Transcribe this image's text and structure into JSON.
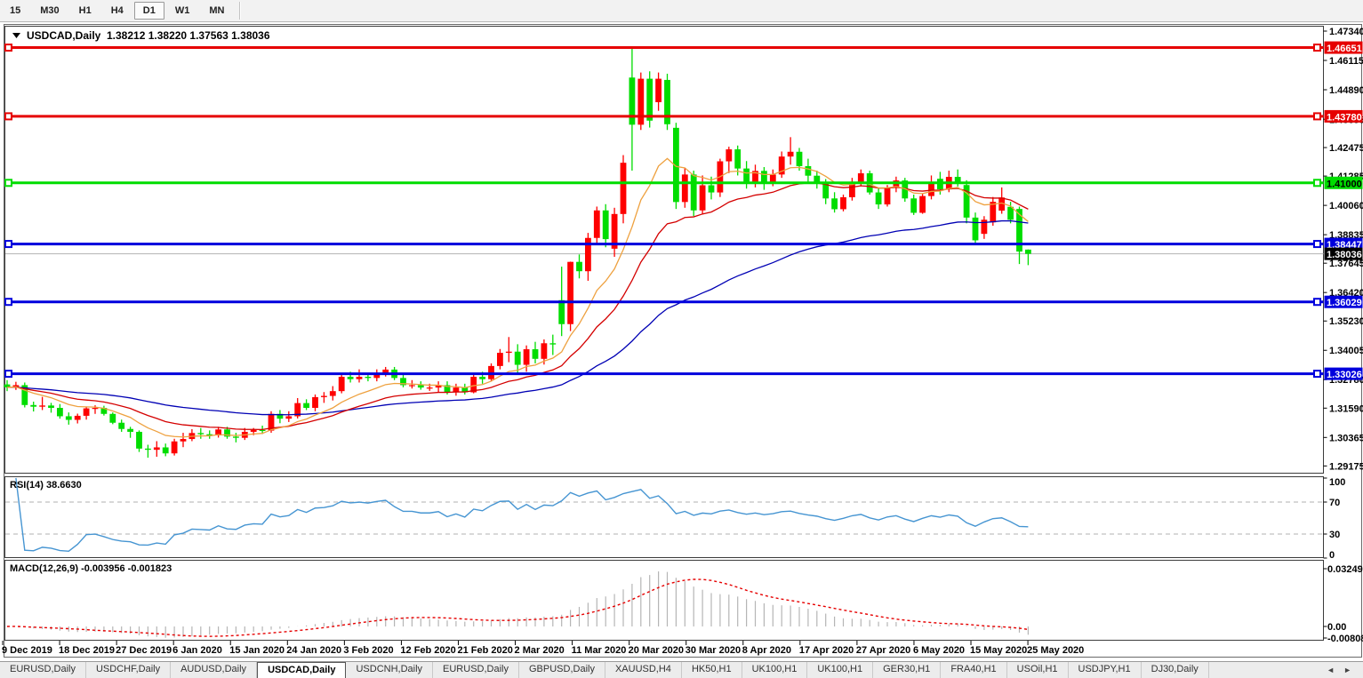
{
  "toolbar": {
    "timeframes": [
      "15",
      "M30",
      "H1",
      "H4",
      "D1",
      "W1",
      "MN"
    ],
    "active": "D1"
  },
  "chart": {
    "symbol_label": "USDCAD,Daily",
    "ohlc_text": "1.38212 1.38220 1.37563 1.38036",
    "price_axis_ticks": [
      "1.47340",
      "1.46115",
      "1.44890",
      "1.43655",
      "1.42475",
      "1.41285",
      "1.40060",
      "1.38835",
      "1.37645",
      "1.36420",
      "1.35230",
      "1.34005",
      "1.32780",
      "1.31590",
      "1.30365",
      "1.29175"
    ],
    "hlines": [
      {
        "value": 1.46651,
        "label": "1.46651",
        "color": "#e60000",
        "text_color": "#ffffff"
      },
      {
        "value": 1.4378,
        "label": "1.43780",
        "color": "#e60000",
        "text_color": "#ffffff"
      },
      {
        "value": 1.41,
        "label": "1.41000",
        "color": "#00dd00",
        "text_color": "#000000"
      },
      {
        "value": 1.38447,
        "label": "1.38447",
        "color": "#0000dd",
        "text_color": "#ffffff"
      },
      {
        "value": 1.36029,
        "label": "1.36029",
        "color": "#0000dd",
        "text_color": "#ffffff"
      },
      {
        "value": 1.33026,
        "label": "1.33026",
        "color": "#0000dd",
        "text_color": "#ffffff"
      }
    ],
    "current_price": {
      "value": 1.38036,
      "label": "1.38036",
      "badge_color": "#000000",
      "text_color": "#ffffff",
      "line_color": "#b2b2b2"
    },
    "date_ticks": [
      "9 Dec 2019",
      "18 Dec 2019",
      "27 Dec 2019",
      "6 Jan 2020",
      "15 Jan 2020",
      "24 Jan 2020",
      "3 Feb 2020",
      "12 Feb 2020",
      "21 Feb 2020",
      "2 Mar 2020",
      "11 Mar 2020",
      "20 Mar 2020",
      "30 Mar 2020",
      "8 Apr 2020",
      "17 Apr 2020",
      "27 Apr 2020",
      "6 May 2020",
      "15 May 2020",
      "25 May 2020"
    ]
  },
  "panels": {
    "rsi_label": "RSI(14)",
    "rsi_value": "38.6630",
    "rsi_axis_ticks": [
      "100",
      "70",
      "30",
      "0"
    ],
    "macd_label": "MACD(12,26,9)",
    "macd_values": "-0.003956 -0.001823",
    "macd_axis_ticks": [
      "0.032493",
      "0.00",
      "-0.008086"
    ]
  },
  "chart_data": {
    "type": "candlestick",
    "symbol": "USDCAD",
    "timeframe": "Daily",
    "up_color": "#fe0000",
    "down_color": "#00dd00",
    "ma": {
      "fast_period": 10,
      "medium_period": 21,
      "slow_period": 55,
      "fast_color": "#eea13f",
      "medium_color": "#d40000",
      "slow_color": "#0000b4"
    },
    "rsi": {
      "period": 14,
      "current": 38.663,
      "levels": [
        70,
        30
      ],
      "color": "#4695d2"
    },
    "macd": {
      "fast": 12,
      "slow": 26,
      "signal": 9,
      "current_macd": -0.003956,
      "current_signal": -0.001823,
      "histogram_color": "#b5b5b5",
      "signal_color": "#e60000"
    },
    "candles_ohlc": [
      [
        1.3258,
        1.3276,
        1.323,
        1.3246
      ],
      [
        1.3246,
        1.3269,
        1.3235,
        1.3255
      ],
      [
        1.3255,
        1.3266,
        1.3162,
        1.3172
      ],
      [
        1.3172,
        1.3186,
        1.3145,
        1.3165
      ],
      [
        1.3165,
        1.3206,
        1.3151,
        1.317
      ],
      [
        1.317,
        1.3181,
        1.314,
        1.316
      ],
      [
        1.316,
        1.3176,
        1.3115,
        1.3125
      ],
      [
        1.3125,
        1.3141,
        1.309,
        1.311
      ],
      [
        1.311,
        1.3136,
        1.3095,
        1.3127
      ],
      [
        1.3127,
        1.3166,
        1.3111,
        1.3158
      ],
      [
        1.3158,
        1.3171,
        1.3135,
        1.316
      ],
      [
        1.316,
        1.3169,
        1.3128,
        1.3135
      ],
      [
        1.3135,
        1.3141,
        1.3092,
        1.3098
      ],
      [
        1.3098,
        1.3111,
        1.306,
        1.3072
      ],
      [
        1.3072,
        1.3081,
        1.3035,
        1.306
      ],
      [
        1.306,
        1.3066,
        1.2976,
        1.299
      ],
      [
        1.299,
        1.3006,
        1.2952,
        1.2985
      ],
      [
        1.2985,
        1.3021,
        1.2956,
        1.2995
      ],
      [
        1.2995,
        1.3011,
        1.2958,
        1.297
      ],
      [
        1.297,
        1.3031,
        1.2961,
        1.302
      ],
      [
        1.302,
        1.3056,
        1.2996,
        1.303
      ],
      [
        1.303,
        1.3071,
        1.3021,
        1.3055
      ],
      [
        1.3055,
        1.3076,
        1.3031,
        1.305
      ],
      [
        1.305,
        1.3066,
        1.3031,
        1.3045
      ],
      [
        1.3045,
        1.3081,
        1.3036,
        1.307
      ],
      [
        1.307,
        1.3081,
        1.3031,
        1.304
      ],
      [
        1.304,
        1.3056,
        1.3016,
        1.3035
      ],
      [
        1.3035,
        1.3076,
        1.3026,
        1.306
      ],
      [
        1.306,
        1.3076,
        1.3046,
        1.3068
      ],
      [
        1.3068,
        1.3086,
        1.3051,
        1.3065
      ],
      [
        1.3065,
        1.3146,
        1.3056,
        1.3135
      ],
      [
        1.3135,
        1.3151,
        1.3096,
        1.3115
      ],
      [
        1.3115,
        1.3146,
        1.3101,
        1.3125
      ],
      [
        1.3125,
        1.3201,
        1.3116,
        1.318
      ],
      [
        1.318,
        1.3196,
        1.3151,
        1.316
      ],
      [
        1.316,
        1.3216,
        1.3146,
        1.3205
      ],
      [
        1.3205,
        1.3226,
        1.3181,
        1.321
      ],
      [
        1.321,
        1.3251,
        1.3191,
        1.323
      ],
      [
        1.323,
        1.3306,
        1.3221,
        1.329
      ],
      [
        1.329,
        1.3311,
        1.3266,
        1.328
      ],
      [
        1.328,
        1.3321,
        1.3266,
        1.329
      ],
      [
        1.329,
        1.3306,
        1.3271,
        1.3285
      ],
      [
        1.3285,
        1.3321,
        1.3271,
        1.3305
      ],
      [
        1.3305,
        1.3331,
        1.3291,
        1.332
      ],
      [
        1.332,
        1.3331,
        1.3276,
        1.3285
      ],
      [
        1.3285,
        1.3301,
        1.3246,
        1.3255
      ],
      [
        1.3255,
        1.3276,
        1.3241,
        1.3255
      ],
      [
        1.3255,
        1.3271,
        1.3236,
        1.3245
      ],
      [
        1.3245,
        1.3261,
        1.3231,
        1.3245
      ],
      [
        1.3245,
        1.3271,
        1.3226,
        1.3255
      ],
      [
        1.3255,
        1.3271,
        1.3216,
        1.3225
      ],
      [
        1.3225,
        1.3261,
        1.3211,
        1.3245
      ],
      [
        1.3245,
        1.3261,
        1.3216,
        1.3225
      ],
      [
        1.3225,
        1.3306,
        1.3221,
        1.329
      ],
      [
        1.329,
        1.3311,
        1.3261,
        1.328
      ],
      [
        1.328,
        1.3346,
        1.3271,
        1.3335
      ],
      [
        1.3335,
        1.3406,
        1.3321,
        1.339
      ],
      [
        1.339,
        1.3456,
        1.3351,
        1.3395
      ],
      [
        1.3395,
        1.3426,
        1.3306,
        1.334
      ],
      [
        1.334,
        1.3421,
        1.3311,
        1.3405
      ],
      [
        1.3405,
        1.3436,
        1.3346,
        1.3365
      ],
      [
        1.3365,
        1.3446,
        1.3341,
        1.343
      ],
      [
        1.343,
        1.3466,
        1.3381,
        1.3425
      ],
      [
        1.361,
        1.375,
        1.346,
        1.351
      ],
      [
        1.351,
        1.3771,
        1.3481,
        1.377
      ],
      [
        1.377,
        1.3801,
        1.3701,
        1.3731
      ],
      [
        1.3731,
        1.3891,
        1.3691,
        1.387
      ],
      [
        1.387,
        1.4001,
        1.3841,
        1.3985
      ],
      [
        1.3985,
        1.4011,
        1.3831,
        1.3865
      ],
      [
        1.3825,
        1.3996,
        1.3791,
        1.397
      ],
      [
        1.397,
        1.4216,
        1.3931,
        1.4184
      ],
      [
        1.454,
        1.4666,
        1.4151,
        1.4343
      ],
      [
        1.4343,
        1.4561,
        1.4321,
        1.4535
      ],
      [
        1.4535,
        1.4566,
        1.4331,
        1.436
      ],
      [
        1.4437,
        1.4561,
        1.4401,
        1.4535
      ],
      [
        1.453,
        1.4556,
        1.4321,
        1.4345
      ],
      [
        1.433,
        1.4351,
        1.3991,
        1.402
      ],
      [
        1.402,
        1.4161,
        1.3996,
        1.4135
      ],
      [
        1.4135,
        1.4151,
        1.3961,
        1.3985
      ],
      [
        1.3985,
        1.4131,
        1.3971,
        1.409
      ],
      [
        1.409,
        1.4126,
        1.4031,
        1.406
      ],
      [
        1.406,
        1.4201,
        1.4041,
        1.419
      ],
      [
        1.419,
        1.4251,
        1.4141,
        1.424
      ],
      [
        1.424,
        1.4256,
        1.4131,
        1.416
      ],
      [
        1.416,
        1.4191,
        1.4076,
        1.4105
      ],
      [
        1.4105,
        1.4176,
        1.4081,
        1.415
      ],
      [
        1.415,
        1.4166,
        1.4071,
        1.41
      ],
      [
        1.41,
        1.4156,
        1.4086,
        1.4135
      ],
      [
        1.4135,
        1.4231,
        1.4121,
        1.421
      ],
      [
        1.421,
        1.4291,
        1.4176,
        1.423
      ],
      [
        1.423,
        1.4246,
        1.4151,
        1.417
      ],
      [
        1.417,
        1.4201,
        1.4096,
        1.413
      ],
      [
        1.413,
        1.4151,
        1.4076,
        1.41
      ],
      [
        1.41,
        1.4116,
        1.4011,
        1.4035
      ],
      [
        1.4035,
        1.4061,
        1.3976,
        1.399
      ],
      [
        1.399,
        1.4051,
        1.3981,
        1.404
      ],
      [
        1.404,
        1.4121,
        1.4026,
        1.4105
      ],
      [
        1.4105,
        1.4156,
        1.4086,
        1.414
      ],
      [
        1.414,
        1.4151,
        1.4051,
        1.406
      ],
      [
        1.406,
        1.4076,
        1.3991,
        1.401
      ],
      [
        1.401,
        1.4091,
        1.4001,
        1.408
      ],
      [
        1.408,
        1.4126,
        1.4061,
        1.411
      ],
      [
        1.411,
        1.4121,
        1.4021,
        1.4035
      ],
      [
        1.4035,
        1.4051,
        1.3966,
        1.3975
      ],
      [
        1.3975,
        1.4056,
        1.3971,
        1.4045
      ],
      [
        1.4045,
        1.4131,
        1.4031,
        1.4105
      ],
      [
        1.4117,
        1.4146,
        1.4051,
        1.4073
      ],
      [
        1.4073,
        1.4151,
        1.4061,
        1.4125
      ],
      [
        1.4125,
        1.4156,
        1.4085,
        1.41
      ],
      [
        1.4091,
        1.4111,
        1.3931,
        1.3955
      ],
      [
        1.3955,
        1.3976,
        1.3841,
        1.386
      ],
      [
        1.3887,
        1.3961,
        1.3866,
        1.3946
      ],
      [
        1.3935,
        1.4041,
        1.3921,
        1.4021
      ],
      [
        1.3984,
        1.4081,
        1.3971,
        1.4039
      ],
      [
        1.4,
        1.4021,
        1.3931,
        1.3946
      ],
      [
        1.3991,
        1.4001,
        1.3761,
        1.3813
      ],
      [
        1.38212,
        1.3822,
        1.37563,
        1.38036
      ]
    ]
  },
  "tabs": {
    "items": [
      "EURUSD,Daily",
      "USDCHF,Daily",
      "AUDUSD,Daily",
      "USDCAD,Daily",
      "USDCNH,Daily",
      "EURUSD,Daily",
      "GBPUSD,Daily",
      "XAUUSD,H4",
      "HK50,H1",
      "UK100,H1",
      "UK100,H1",
      "GER30,H1",
      "FRA40,H1",
      "USOil,H1",
      "USDJPY,H1",
      "DJ30,Daily"
    ],
    "active_index": 3
  },
  "nav": {
    "left_arrow": "◄",
    "right_arrow": "►"
  }
}
